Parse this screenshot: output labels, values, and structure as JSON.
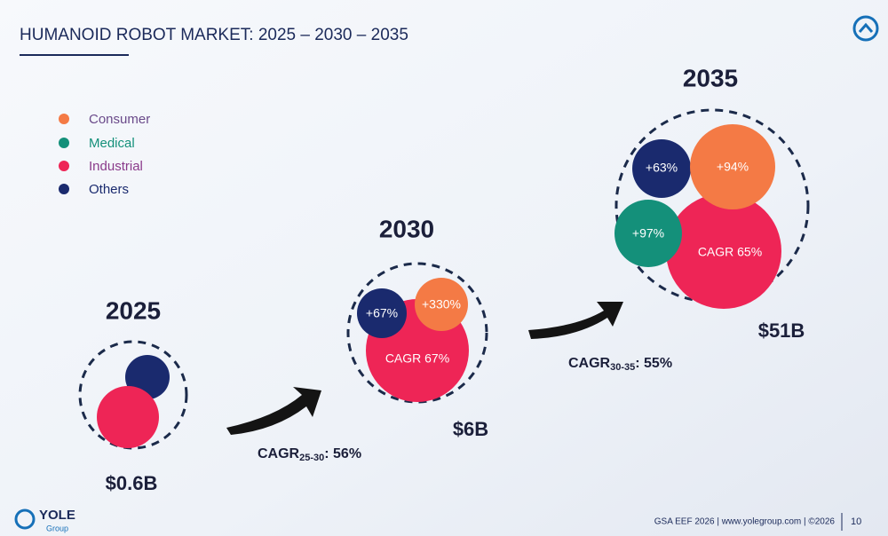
{
  "header": {
    "title": "HUMANOID ROBOT MARKET: 2025 – 2030 – 2035"
  },
  "legend": {
    "items": [
      {
        "label": "Consumer"
      },
      {
        "label": "Medical"
      },
      {
        "label": "Industrial"
      },
      {
        "label": "Others"
      }
    ]
  },
  "groups": [
    {
      "year": "2025",
      "total": "$0.6B",
      "labels": []
    },
    {
      "year": "2030",
      "total": "$6B",
      "labels": [
        "+67%",
        "+330%",
        "CAGR 67%"
      ]
    },
    {
      "year": "2035",
      "total": "$51B",
      "labels": [
        "+63%",
        "+94%",
        "+97%",
        "CAGR 65%"
      ]
    }
  ],
  "arrows": [
    {
      "prefix": "CAGR",
      "sub": "25-30",
      "suffix": ": 56%"
    },
    {
      "prefix": "CAGR",
      "sub": "30-35",
      "suffix": ": 55%"
    }
  ],
  "footer": {
    "logo": "YOLE",
    "logo_sub": "Group",
    "source": "GSA EEF 2026 | www.yolegroup.com | ©2026",
    "page": "10"
  }
}
